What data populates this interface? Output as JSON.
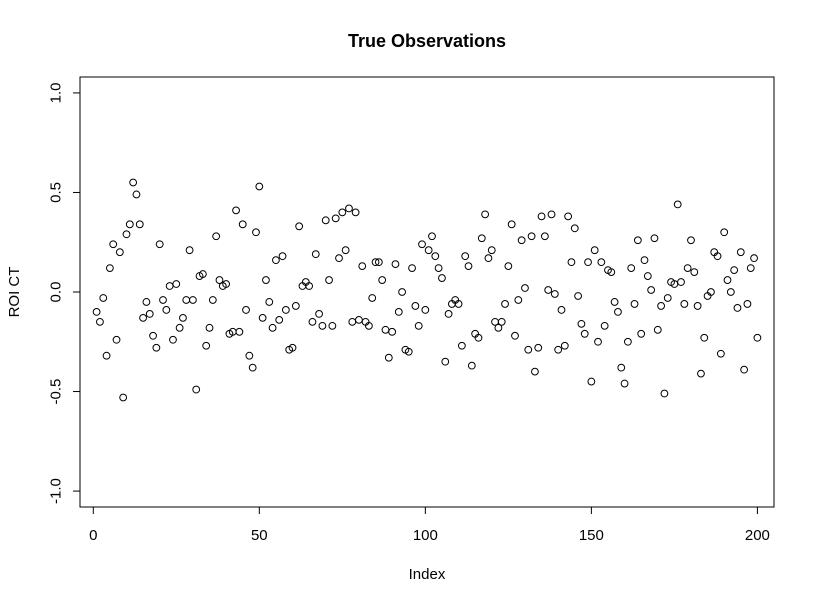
{
  "chart_data": {
    "type": "scatter",
    "title": "True Observations",
    "xlabel": "Index",
    "ylabel": "ROI CT",
    "xlim": [
      -4,
      205
    ],
    "ylim": [
      -1.08,
      1.08
    ],
    "x_ticks": [
      0,
      50,
      100,
      150,
      200
    ],
    "x_tick_labels": [
      "0",
      "50",
      "100",
      "150",
      "200"
    ],
    "y_ticks": [
      -1.0,
      -0.5,
      0.0,
      0.5,
      1.0
    ],
    "y_tick_labels": [
      "-1.0",
      "-0.5",
      "0.0",
      "0.5",
      "1.0"
    ],
    "grid": false,
    "legend": "none",
    "marker": "open-circle",
    "color": "#000000",
    "x": [
      1,
      2,
      3,
      4,
      5,
      6,
      7,
      8,
      9,
      10,
      11,
      12,
      13,
      14,
      15,
      16,
      17,
      18,
      19,
      20,
      21,
      22,
      23,
      24,
      25,
      26,
      27,
      28,
      29,
      30,
      31,
      32,
      33,
      34,
      35,
      36,
      37,
      38,
      39,
      40,
      41,
      42,
      43,
      44,
      45,
      46,
      47,
      48,
      49,
      50,
      51,
      52,
      53,
      54,
      55,
      56,
      57,
      58,
      59,
      60,
      61,
      62,
      63,
      64,
      65,
      66,
      67,
      68,
      69,
      70,
      71,
      72,
      73,
      74,
      75,
      76,
      77,
      78,
      79,
      80,
      81,
      82,
      83,
      84,
      85,
      86,
      87,
      88,
      89,
      90,
      91,
      92,
      93,
      94,
      95,
      96,
      97,
      98,
      99,
      100,
      101,
      102,
      103,
      104,
      105,
      106,
      107,
      108,
      109,
      110,
      111,
      112,
      113,
      114,
      115,
      116,
      117,
      118,
      119,
      120,
      121,
      122,
      123,
      124,
      125,
      126,
      127,
      128,
      129,
      130,
      131,
      132,
      133,
      134,
      135,
      136,
      137,
      138,
      139,
      140,
      141,
      142,
      143,
      144,
      145,
      146,
      147,
      148,
      149,
      150,
      151,
      152,
      153,
      154,
      155,
      156,
      157,
      158,
      159,
      160,
      161,
      162,
      163,
      164,
      165,
      166,
      167,
      168,
      169,
      170,
      171,
      172,
      173,
      174,
      175,
      176,
      177,
      178,
      179,
      180,
      181,
      182,
      183,
      184,
      185,
      186,
      187,
      188,
      189,
      190,
      191,
      192,
      193,
      194,
      195,
      196,
      197,
      198,
      199,
      200
    ],
    "y": [
      -0.1,
      -0.15,
      -0.03,
      -0.32,
      0.12,
      0.24,
      -0.24,
      0.2,
      -0.53,
      0.29,
      0.34,
      0.55,
      0.49,
      0.34,
      -0.13,
      -0.05,
      -0.11,
      -0.22,
      -0.28,
      0.24,
      -0.04,
      -0.09,
      0.03,
      -0.24,
      0.04,
      -0.18,
      -0.13,
      -0.04,
      0.21,
      -0.04,
      -0.49,
      0.08,
      0.09,
      -0.27,
      -0.18,
      -0.04,
      0.28,
      0.06,
      0.03,
      0.04,
      -0.21,
      -0.2,
      0.41,
      -0.2,
      0.34,
      -0.09,
      -0.32,
      -0.38,
      0.3,
      0.53,
      -0.13,
      0.06,
      -0.05,
      -0.18,
      0.16,
      -0.14,
      0.18,
      -0.09,
      -0.29,
      -0.28,
      -0.07,
      0.33,
      0.03,
      0.05,
      0.03,
      -0.15,
      0.19,
      -0.11,
      -0.17,
      0.36,
      0.06,
      -0.17,
      0.37,
      0.17,
      0.4,
      0.21,
      0.42,
      -0.15,
      0.4,
      -0.14,
      0.13,
      -0.15,
      -0.17,
      -0.03,
      0.15,
      0.15,
      0.06,
      -0.19,
      -0.33,
      -0.2,
      0.14,
      -0.1,
      0.0,
      -0.29,
      -0.3,
      0.12,
      -0.07,
      -0.17,
      0.24,
      -0.09,
      0.21,
      0.28,
      0.18,
      0.12,
      0.07,
      -0.35,
      -0.11,
      -0.06,
      -0.04,
      -0.06,
      -0.27,
      0.18,
      0.13,
      -0.37,
      -0.21,
      -0.23,
      0.27,
      0.39,
      0.17,
      0.21,
      -0.15,
      -0.18,
      -0.15,
      -0.06,
      0.13,
      0.34,
      -0.22,
      -0.04,
      0.26,
      0.02,
      -0.29,
      0.28,
      -0.4,
      -0.28,
      0.38,
      0.28,
      0.01,
      0.39,
      -0.01,
      -0.29,
      -0.09,
      -0.27,
      0.38,
      0.15,
      0.32,
      -0.02,
      -0.16,
      -0.21,
      0.15,
      -0.45,
      0.21,
      -0.25,
      0.15,
      -0.17,
      0.11,
      0.1,
      -0.05,
      -0.1,
      -0.38,
      -0.46,
      -0.25,
      0.12,
      -0.06,
      0.26,
      -0.21,
      0.16,
      0.08,
      0.01,
      0.27,
      -0.19,
      -0.07,
      -0.51,
      -0.03,
      0.05,
      0.04,
      0.44,
      0.05,
      -0.06,
      0.12,
      0.26,
      0.1,
      -0.07,
      -0.41,
      -0.23,
      -0.02,
      0.0,
      0.2,
      0.18,
      -0.31,
      0.3,
      0.06,
      0.0,
      0.11,
      -0.08,
      0.2,
      -0.39,
      -0.06,
      0.12,
      0.17,
      -0.23
    ]
  }
}
